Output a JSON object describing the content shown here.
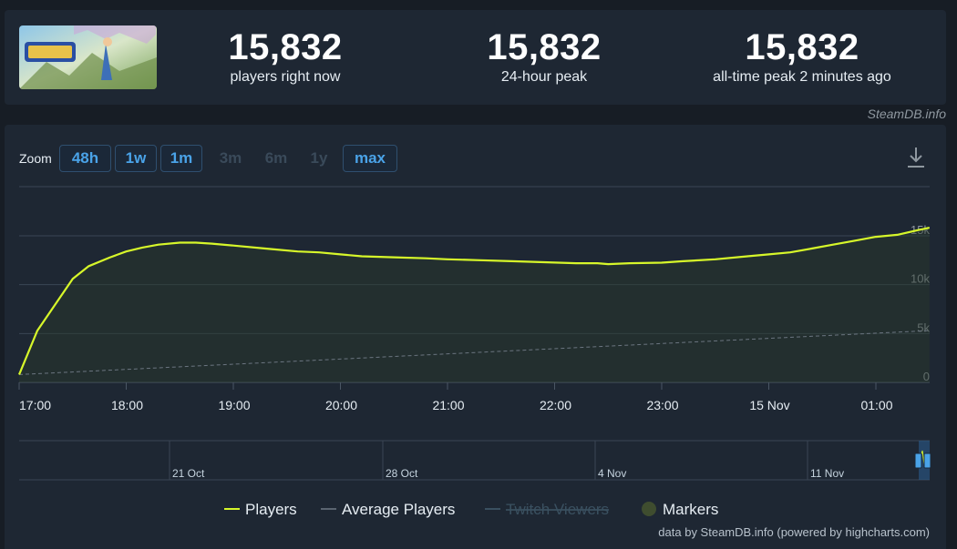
{
  "stats": [
    {
      "value": "15,832",
      "label": "players right now"
    },
    {
      "value": "15,832",
      "label": "24-hour peak"
    },
    {
      "value": "15,832",
      "label": "all-time peak 2 minutes ago"
    }
  ],
  "watermark": "SteamDB.info",
  "zoom": {
    "label": "Zoom",
    "buttons": [
      {
        "label": "48h",
        "state": "active"
      },
      {
        "label": "1w",
        "state": "active"
      },
      {
        "label": "1m",
        "state": "active"
      },
      {
        "label": "3m",
        "state": "disabled"
      },
      {
        "label": "6m",
        "state": "disabled"
      },
      {
        "label": "1y",
        "state": "disabled"
      },
      {
        "label": "max",
        "state": "active"
      }
    ]
  },
  "icons": {
    "download": "download-icon"
  },
  "colors": {
    "players": "#d7f72a",
    "average": "#5a6470",
    "twitch": "#3a5060",
    "markers": "#3f4d2f",
    "grid": "#3a4654",
    "text": "#e6edf3"
  },
  "chart_data": {
    "type": "line",
    "x_ticks": [
      "17:00",
      "18:00",
      "19:00",
      "20:00",
      "21:00",
      "22:00",
      "23:00",
      "15 Nov",
      "01:00"
    ],
    "y_ticks": [
      "0",
      "5k",
      "10k",
      "15k"
    ],
    "ylim": [
      0,
      17500
    ],
    "series": [
      {
        "name": "Players",
        "x_hours": [
          0,
          0.17,
          0.5,
          0.65,
          0.85,
          1.0,
          1.15,
          1.3,
          1.5,
          1.65,
          1.8,
          2.0,
          2.3,
          2.6,
          2.8,
          3.0,
          3.2,
          3.5,
          3.8,
          4.0,
          4.3,
          4.6,
          4.9,
          5.2,
          5.4,
          5.5,
          5.7,
          6.0,
          6.2,
          6.5,
          6.8,
          7.0,
          7.2,
          7.4,
          7.6,
          7.8,
          8.0,
          8.2,
          8.4,
          8.5
        ],
        "values": [
          800,
          5300,
          10600,
          11900,
          12800,
          13400,
          13800,
          14100,
          14300,
          14300,
          14200,
          14000,
          13700,
          13400,
          13300,
          13100,
          12900,
          12800,
          12700,
          12600,
          12500,
          12400,
          12300,
          12200,
          12200,
          12100,
          12200,
          12250,
          12400,
          12600,
          12900,
          13100,
          13300,
          13700,
          14100,
          14500,
          14900,
          15100,
          15600,
          15832
        ]
      },
      {
        "name": "Average Players",
        "x_hours": [
          0,
          8.5
        ],
        "values": [
          800,
          5300
        ]
      }
    ],
    "navigator_labels": [
      "21 Oct",
      "28 Oct",
      "4 Nov",
      "11 Nov"
    ],
    "legend": [
      {
        "name": "Players",
        "symbol": "line",
        "active": true
      },
      {
        "name": "Average Players",
        "symbol": "line",
        "active": true
      },
      {
        "name": "Twitch Viewers",
        "symbol": "line",
        "active": false
      },
      {
        "name": "Markers",
        "symbol": "circle",
        "active": true
      }
    ],
    "credit": "data by SteamDB.info (powered by highcharts.com)"
  }
}
